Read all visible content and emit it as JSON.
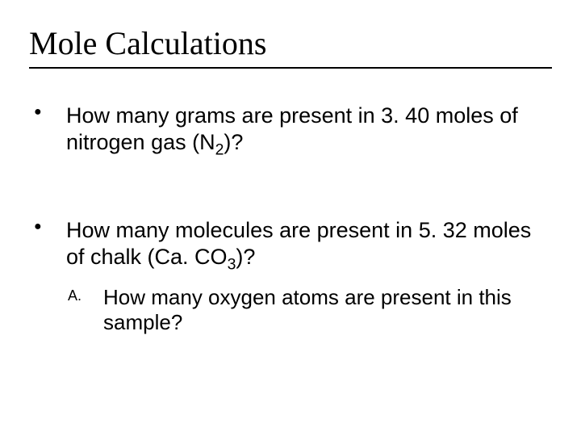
{
  "title": "Mole Calculations",
  "bullets": [
    {
      "text_before": "How many grams are present in 3. 40 moles of nitrogen gas (N",
      "sub": "2",
      "text_after": ")?"
    },
    {
      "text_before": "How many molecules are present in 5. 32 moles of chalk (Ca. CO",
      "sub": "3",
      "text_after": ")?",
      "sub_items": [
        {
          "marker": "A.",
          "text": "How many oxygen atoms are present in this sample?"
        }
      ]
    }
  ],
  "colors": {
    "background": "#ffffff",
    "text": "#000000",
    "rule": "#000000"
  },
  "typography": {
    "title_font": "Times New Roman",
    "body_font": "Arial",
    "title_size_pt": 30,
    "body_size_pt": 20
  }
}
